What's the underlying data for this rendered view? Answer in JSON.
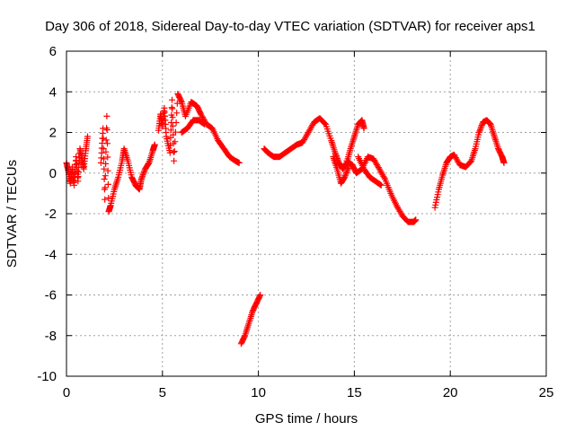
{
  "chart_data": {
    "type": "scatter",
    "title": "Day 306 of 2018, Sidereal Day-to-day VTEC variation (SDTVAR) for receiver aps1",
    "xlabel": "GPS time / hours",
    "ylabel": "SDTVAR / TECUs",
    "xlim": [
      0,
      25
    ],
    "ylim": [
      -10,
      6
    ],
    "xticks": [
      "0",
      "5",
      "10",
      "15",
      "20",
      "25"
    ],
    "yticks": [
      "-10",
      "-8",
      "-6",
      "-4",
      "-2",
      "0",
      "2",
      "4",
      "6"
    ],
    "grid": true,
    "marker": "plus",
    "color": "#ff0000",
    "series": [
      {
        "name": "aps1",
        "segments": [
          [
            [
              0.0,
              0.5
            ],
            [
              0.1,
              0.1
            ],
            [
              0.2,
              -0.5
            ],
            [
              0.3,
              0.3
            ],
            [
              0.4,
              -0.6
            ],
            [
              0.5,
              0.8
            ],
            [
              0.6,
              -0.4
            ],
            [
              0.7,
              1.2
            ],
            [
              0.8,
              0.7
            ],
            [
              0.9,
              0.2
            ],
            [
              1.0,
              1.1
            ],
            [
              1.1,
              1.8
            ]
          ],
          [
            [
              1.8,
              0.5
            ],
            [
              1.9,
              2.2
            ],
            [
              2.0,
              -1.3
            ],
            [
              2.1,
              2.8
            ],
            [
              2.2,
              -1.9
            ],
            [
              2.3,
              -1.6
            ],
            [
              2.5,
              -0.8
            ],
            [
              2.7,
              -0.2
            ],
            [
              2.9,
              0.6
            ],
            [
              3.0,
              1.2
            ],
            [
              3.2,
              0.6
            ],
            [
              3.4,
              -0.2
            ],
            [
              3.6,
              -0.6
            ],
            [
              3.8,
              -0.8
            ],
            [
              3.9,
              -0.3
            ],
            [
              4.1,
              0.2
            ],
            [
              4.3,
              0.5
            ],
            [
              4.5,
              1.1
            ],
            [
              4.6,
              1.4
            ]
          ],
          [
            [
              4.8,
              2.1
            ],
            [
              4.9,
              2.9
            ],
            [
              5.0,
              2.3
            ],
            [
              5.1,
              3.2
            ],
            [
              5.2,
              1.8
            ],
            [
              5.4,
              1.0
            ],
            [
              5.5,
              3.6
            ],
            [
              5.6,
              0.6
            ],
            [
              5.8,
              3.9
            ],
            [
              6.0,
              3.5
            ],
            [
              6.2,
              2.8
            ],
            [
              6.5,
              3.5
            ],
            [
              6.8,
              3.3
            ],
            [
              7.0,
              2.9
            ],
            [
              7.3,
              2.4
            ],
            [
              7.6,
              2.2
            ],
            [
              7.9,
              1.6
            ],
            [
              8.2,
              1.2
            ],
            [
              8.5,
              0.8
            ],
            [
              8.8,
              0.6
            ],
            [
              9.0,
              0.5
            ]
          ],
          [
            [
              6.0,
              2.0
            ],
            [
              6.3,
              2.2
            ],
            [
              6.6,
              2.6
            ],
            [
              6.9,
              2.6
            ],
            [
              7.2,
              2.4
            ]
          ],
          [
            [
              9.1,
              -8.4
            ],
            [
              9.3,
              -8.0
            ],
            [
              9.5,
              -7.4
            ],
            [
              9.7,
              -6.8
            ],
            [
              9.9,
              -6.4
            ],
            [
              10.1,
              -6.0
            ]
          ],
          [
            [
              10.3,
              1.2
            ],
            [
              10.5,
              1.0
            ],
            [
              10.8,
              0.8
            ],
            [
              11.1,
              0.8
            ],
            [
              11.4,
              1.0
            ],
            [
              11.7,
              1.2
            ],
            [
              12.0,
              1.4
            ],
            [
              12.3,
              1.5
            ],
            [
              12.6,
              2.0
            ],
            [
              12.9,
              2.5
            ],
            [
              13.2,
              2.7
            ],
            [
              13.5,
              2.4
            ],
            [
              13.8,
              1.6
            ],
            [
              14.0,
              1.0
            ],
            [
              14.2,
              0.5
            ],
            [
              14.4,
              0.2
            ],
            [
              14.6,
              0.5
            ],
            [
              14.8,
              1.2
            ],
            [
              15.0,
              1.8
            ],
            [
              15.2,
              2.4
            ],
            [
              15.4,
              2.6
            ],
            [
              15.5,
              2.2
            ]
          ],
          [
            [
              13.9,
              0.8
            ],
            [
              14.1,
              0.2
            ],
            [
              14.3,
              -0.5
            ],
            [
              14.5,
              -0.2
            ],
            [
              14.7,
              0.3
            ]
          ],
          [
            [
              14.6,
              0.6
            ],
            [
              14.9,
              0.4
            ],
            [
              15.1,
              0.0
            ],
            [
              15.4,
              0.2
            ],
            [
              15.7,
              0.8
            ],
            [
              16.0,
              0.7
            ],
            [
              16.3,
              0.2
            ],
            [
              16.6,
              -0.3
            ],
            [
              16.9,
              -1.0
            ],
            [
              17.2,
              -1.6
            ],
            [
              17.5,
              -2.1
            ],
            [
              17.8,
              -2.4
            ],
            [
              18.1,
              -2.4
            ],
            [
              18.2,
              -2.3
            ]
          ],
          [
            [
              15.2,
              0.8
            ],
            [
              15.5,
              0.2
            ],
            [
              15.8,
              -0.2
            ],
            [
              16.1,
              -0.4
            ],
            [
              16.4,
              -0.6
            ]
          ],
          [
            [
              19.2,
              -1.7
            ],
            [
              19.4,
              -0.8
            ],
            [
              19.6,
              -0.1
            ],
            [
              19.8,
              0.5
            ],
            [
              20.0,
              0.8
            ],
            [
              20.2,
              0.9
            ],
            [
              20.5,
              0.4
            ],
            [
              20.8,
              0.3
            ],
            [
              21.1,
              0.6
            ],
            [
              21.3,
              1.2
            ],
            [
              21.5,
              2.0
            ],
            [
              21.7,
              2.5
            ],
            [
              21.9,
              2.6
            ],
            [
              22.1,
              2.4
            ],
            [
              22.3,
              1.8
            ],
            [
              22.5,
              1.2
            ],
            [
              22.7,
              0.8
            ],
            [
              22.8,
              0.5
            ]
          ]
        ]
      }
    ]
  }
}
